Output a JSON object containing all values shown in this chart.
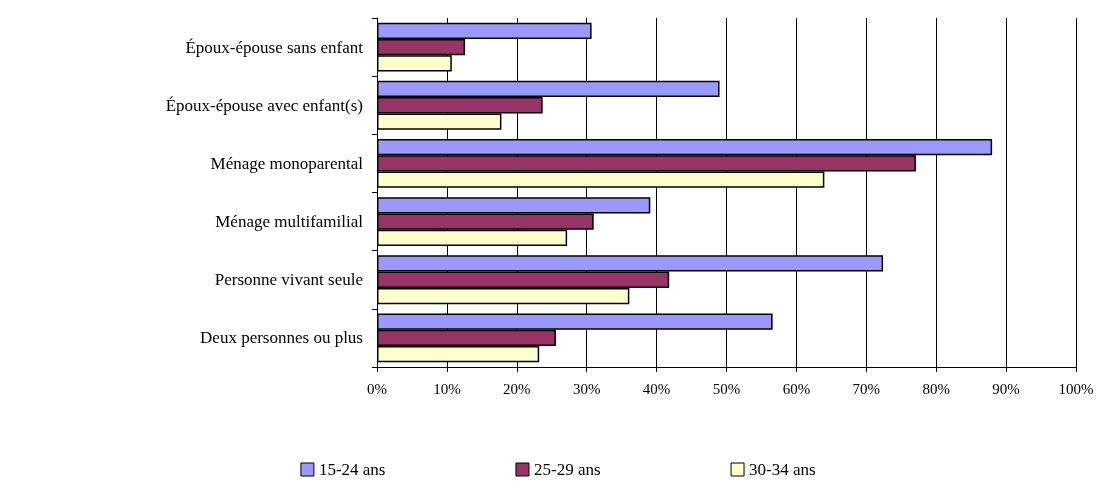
{
  "chart_data": {
    "type": "bar",
    "orientation": "horizontal",
    "categories": [
      "Époux-épouse sans enfant",
      "Époux-épouse avec enfant(s)",
      "Ménage monoparental",
      "Ménage multifamilial",
      "Personne vivant seule",
      "Deux personnes ou plus"
    ],
    "series": [
      {
        "name": "15-24 ans",
        "color": "#9999ff",
        "values": [
          30.7,
          49,
          88,
          39.1,
          72.4,
          56.6
        ]
      },
      {
        "name": "25-29 ans",
        "color": "#993366",
        "values": [
          12.6,
          23.7,
          77.1,
          31,
          41.8,
          25.6
        ]
      },
      {
        "name": "30-34 ans",
        "color": "#ffffcc",
        "values": [
          10.7,
          17.8,
          64,
          27.2,
          36.1,
          23.2
        ]
      }
    ],
    "xlim": [
      0,
      100
    ],
    "xticks": [
      {
        "value": 0,
        "label": "0%"
      },
      {
        "value": 10,
        "label": "10%"
      },
      {
        "value": 20,
        "label": "20%"
      },
      {
        "value": 30,
        "label": "30%"
      },
      {
        "value": 40,
        "label": "40%"
      },
      {
        "value": 50,
        "label": "50%"
      },
      {
        "value": 60,
        "label": "60%"
      },
      {
        "value": 70,
        "label": "70%"
      },
      {
        "value": 80,
        "label": "80%"
      },
      {
        "value": 90,
        "label": "90%"
      },
      {
        "value": 100,
        "label": "100%"
      }
    ],
    "grid": "x",
    "legend": "bottom"
  }
}
